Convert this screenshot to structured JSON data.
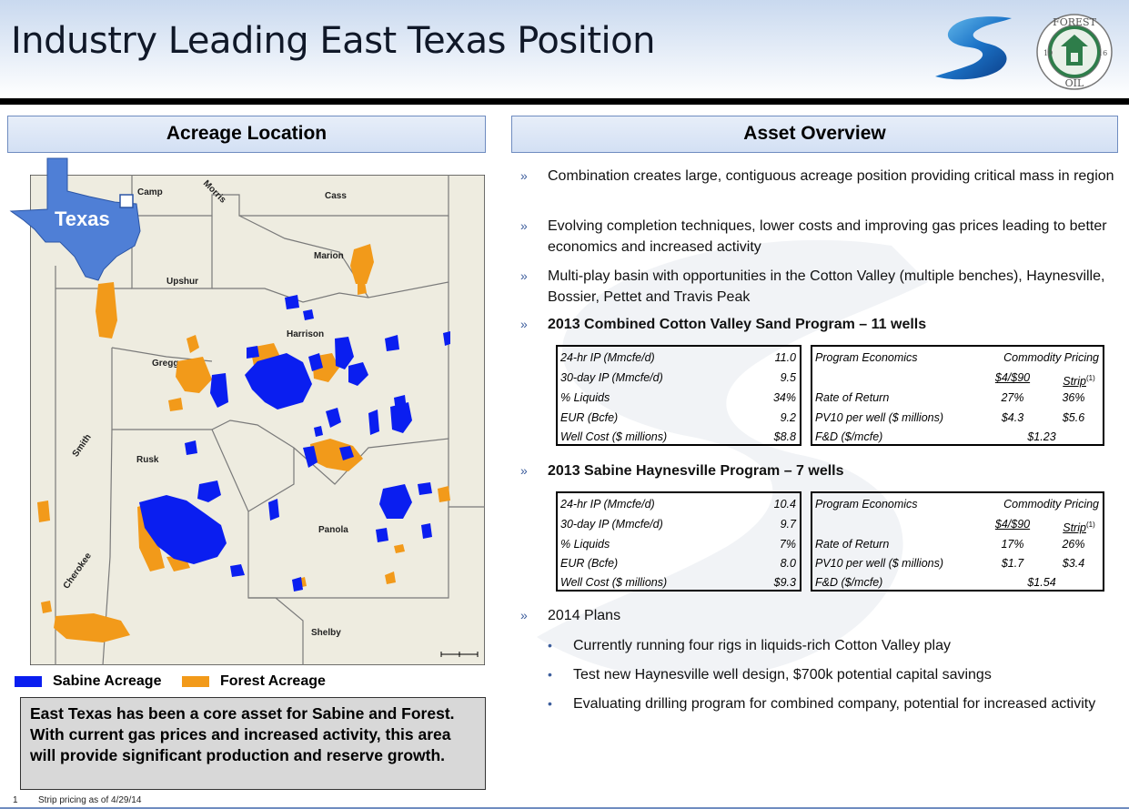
{
  "header": {
    "title": "Industry Leading East Texas Position"
  },
  "logos": {
    "forest_top": "FOREST",
    "forest_bottom": "OIL",
    "forest_year_left": "19",
    "forest_year_right": "16"
  },
  "left": {
    "section_title": "Acreage Location",
    "inset_label": "Texas",
    "counties": [
      "Camp",
      "Morris",
      "Cass",
      "Marion",
      "Upshur",
      "Harrison",
      "Gregg",
      "Smith",
      "Rusk",
      "Panola",
      "Cherokee",
      "Shelby"
    ],
    "legend": [
      {
        "label": "Sabine Acreage",
        "color": "#0a1ef0"
      },
      {
        "label": "Forest Acreage",
        "color": "#f29a1a"
      }
    ],
    "summary": "East Texas has been a core asset for Sabine and Forest. With current gas prices and increased activity, this area will provide significant production and reserve growth."
  },
  "right": {
    "section_title": "Asset Overview",
    "bullets": [
      "Combination creates large, contiguous acreage position providing critical mass in region",
      "Evolving completion techniques, lower costs and improving gas prices leading to better economics and increased activity",
      "Multi-play basin with opportunities in the Cotton Valley (multiple benches), Haynesville, Bossier, Pettet and Travis Peak"
    ],
    "cv_heading": "2013 Combined Cotton Valley Sand Program – 11 wells",
    "hv_heading": "2013 Sabine Haynesville Program – 7 wells",
    "plans_heading": "2014 Plans",
    "plans": [
      "Currently running four rigs in liquids-rich Cotton Valley play",
      "Test new Haynesville well design, $700k potential capital savings",
      "Evaluating drilling program for combined company, potential for increased activity"
    ]
  },
  "cv_table": {
    "metrics": [
      {
        "label": "24-hr IP (Mmcfe/d)",
        "value": "11.0"
      },
      {
        "label": "30-day IP (Mmcfe/d)",
        "value": "9.5"
      },
      {
        "label": "% Liquids",
        "value": "34%"
      },
      {
        "label": "EUR (Bcfe)",
        "value": "9.2"
      },
      {
        "label": "Well Cost ($ millions)",
        "value": "$8.8"
      }
    ],
    "econ_title": "Program Economics",
    "pricing_title": "Commodity Pricing",
    "col1": "$4/$90",
    "col2": "Strip",
    "col2_note": "(1)",
    "ror_label": "Rate of Return",
    "ror1": "27%",
    "ror2": "36%",
    "pv_label": "PV10 per well ($ millions)",
    "pv1": "$4.3",
    "pv2": "$5.6",
    "fd_label": "F&D ($/mcfe)",
    "fd": "$1.23"
  },
  "hv_table": {
    "metrics": [
      {
        "label": "24-hr IP (Mmcfe/d)",
        "value": "10.4"
      },
      {
        "label": "30-day IP (Mmcfe/d)",
        "value": "9.7"
      },
      {
        "label": "% Liquids",
        "value": "7%"
      },
      {
        "label": "EUR (Bcfe)",
        "value": "8.0"
      },
      {
        "label": "Well Cost ($ millions)",
        "value": "$9.3"
      }
    ],
    "econ_title": "Program Economics",
    "pricing_title": "Commodity Pricing",
    "col1": "$4/$90",
    "col2": "Strip",
    "col2_note": "(1)",
    "ror_label": "Rate of Return",
    "ror1": "17%",
    "ror2": "26%",
    "pv_label": "PV10 per well ($ millions)",
    "pv1": "$1.7",
    "pv2": "$3.4",
    "fd_label": "F&D ($/mcfe)",
    "fd": "$1.54"
  },
  "footnote": {
    "number": "1",
    "text": "Strip pricing as of 4/29/14"
  },
  "colors": {
    "accent": "#6f8cc0",
    "bullet": "#3c5d9c",
    "map_bg": "#eeece0"
  }
}
